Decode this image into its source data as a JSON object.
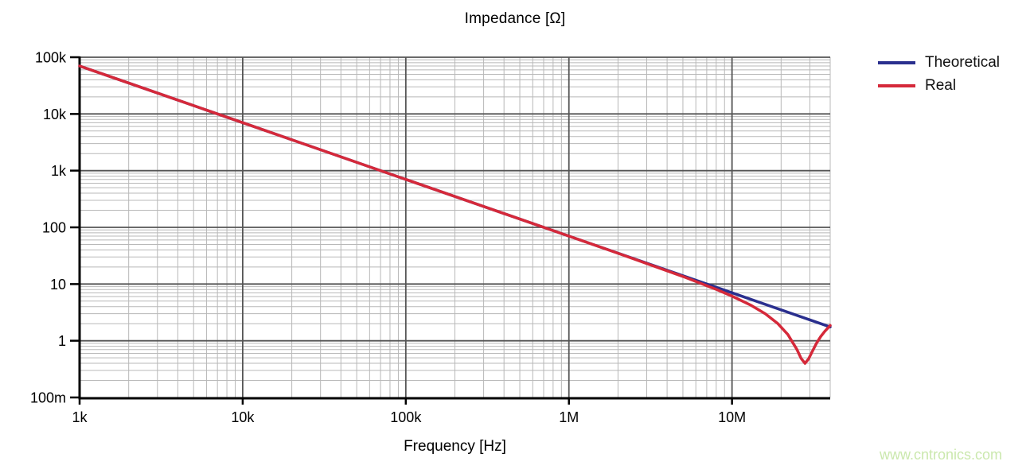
{
  "watermark": {
    "text": "www.cntronics.com",
    "color": "#cbe8ae"
  },
  "chart_data": {
    "type": "line",
    "title": "Impedance [Ω]",
    "xlabel": "Frequency [Hz]",
    "ylabel": "",
    "x_scale": "log",
    "y_scale": "log",
    "xlim": [
      1000,
      40000000
    ],
    "ylim": [
      0.1,
      100000
    ],
    "grid": {
      "on": true,
      "major_color": "#555555",
      "minor_color": "#b8b8b8"
    },
    "axis_color": "#000000",
    "x_ticks": [
      {
        "value": 1000,
        "label": "1k"
      },
      {
        "value": 10000,
        "label": "10k"
      },
      {
        "value": 100000,
        "label": "100k"
      },
      {
        "value": 1000000,
        "label": "1M"
      },
      {
        "value": 10000000,
        "label": "10M"
      }
    ],
    "y_ticks": [
      {
        "value": 100000,
        "label": "100k"
      },
      {
        "value": 10000,
        "label": "10k"
      },
      {
        "value": 1000,
        "label": "1k"
      },
      {
        "value": 100,
        "label": "100"
      },
      {
        "value": 10,
        "label": "10"
      },
      {
        "value": 1,
        "label": "1"
      },
      {
        "value": 0.1,
        "label": "100m"
      }
    ],
    "legend": {
      "position": "top-right",
      "entries": [
        {
          "name": "Theoretical",
          "color": "#2a2f8e"
        },
        {
          "name": "Real",
          "color": "#d5293a"
        }
      ]
    },
    "series": [
      {
        "name": "Theoretical",
        "color": "#2a2f8e",
        "points": [
          [
            1000,
            70100
          ],
          [
            10000,
            7010
          ],
          [
            100000,
            701
          ],
          [
            1000000,
            70.1
          ],
          [
            10000000,
            7.01
          ],
          [
            40000000,
            1.75
          ]
        ]
      },
      {
        "name": "Real",
        "color": "#d5293a",
        "points": [
          [
            1000,
            70100
          ],
          [
            10000,
            7010
          ],
          [
            100000,
            701
          ],
          [
            1000000,
            70.0
          ],
          [
            2000000,
            34.9
          ],
          [
            5000000,
            13.6
          ],
          [
            8000000,
            8.06
          ],
          [
            10000000,
            6.13
          ],
          [
            13000000,
            4.25
          ],
          [
            16000000,
            2.98
          ],
          [
            19000000,
            2.03
          ],
          [
            22000000,
            1.29
          ],
          [
            25000000,
            0.7
          ],
          [
            26500000,
            0.49
          ],
          [
            28000000,
            0.4
          ],
          [
            29500000,
            0.48
          ],
          [
            31000000,
            0.64
          ],
          [
            33000000,
            0.91
          ],
          [
            35000000,
            1.19
          ],
          [
            37000000,
            1.46
          ],
          [
            40000000,
            1.86
          ]
        ]
      }
    ]
  }
}
